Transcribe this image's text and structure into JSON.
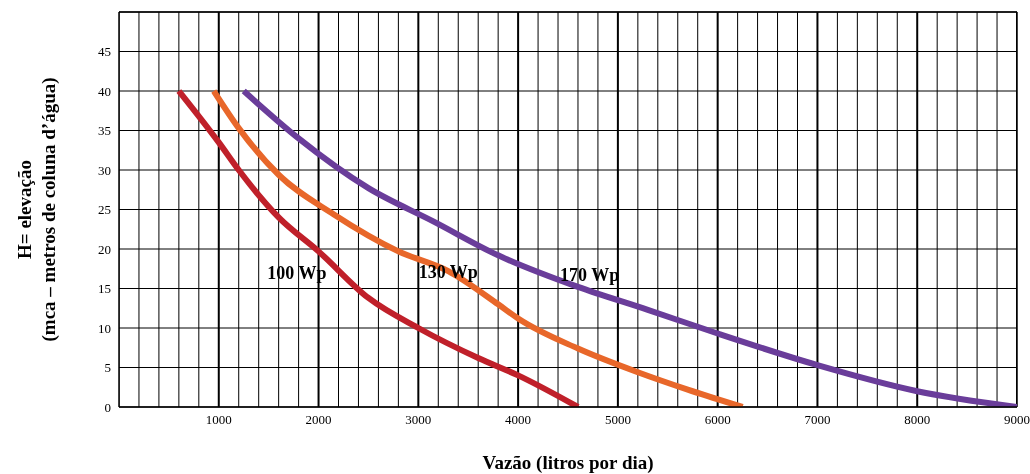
{
  "chart_data": {
    "type": "line",
    "xlabel": "Vazão (litros por dia)",
    "ylabel": "H= elevação\n(mca – metros de coluna d’água)",
    "xlim": [
      0,
      9000
    ],
    "ylim": [
      0,
      50
    ],
    "xticks": [
      {
        "value": 0,
        "label": null
      },
      {
        "value": 200,
        "label": null
      },
      {
        "value": 400,
        "label": null
      },
      {
        "value": 600,
        "label": null
      },
      {
        "value": 800,
        "label": null
      },
      1000,
      {
        "value": 1200,
        "label": null
      },
      {
        "value": 1400,
        "label": null
      },
      {
        "value": 1600,
        "label": null
      },
      {
        "value": 1800,
        "label": null
      },
      2000,
      {
        "value": 2200,
        "label": null
      },
      {
        "value": 2400,
        "label": null
      },
      {
        "value": 2600,
        "label": null
      },
      {
        "value": 2800,
        "label": null
      },
      3000,
      {
        "value": 3200,
        "label": null
      },
      {
        "value": 3400,
        "label": null
      },
      {
        "value": 3600,
        "label": null
      },
      {
        "value": 3800,
        "label": null
      },
      4000,
      {
        "value": 4200,
        "label": null
      },
      {
        "value": 4400,
        "label": null
      },
      {
        "value": 4600,
        "label": null
      },
      {
        "value": 4800,
        "label": null
      },
      5000,
      {
        "value": 5200,
        "label": null
      },
      {
        "value": 5400,
        "label": null
      },
      {
        "value": 5600,
        "label": null
      },
      {
        "value": 5800,
        "label": null
      },
      6000,
      {
        "value": 6200,
        "label": null
      },
      {
        "value": 6400,
        "label": null
      },
      {
        "value": 6600,
        "label": null
      },
      {
        "value": 6800,
        "label": null
      },
      7000,
      {
        "value": 7200,
        "label": null
      },
      {
        "value": 7400,
        "label": null
      },
      {
        "value": 7600,
        "label": null
      },
      {
        "value": 7800,
        "label": null
      },
      8000,
      {
        "value": 8200,
        "label": null
      },
      {
        "value": 8400,
        "label": null
      },
      {
        "value": 8600,
        "label": null
      },
      {
        "value": 8800,
        "label": null
      },
      9000
    ],
    "yticks": [
      0,
      5,
      10,
      15,
      20,
      25,
      30,
      35,
      40,
      45
    ],
    "grid": true,
    "legend": false,
    "marker": "none",
    "line_style": "solid",
    "series": [
      {
        "color": "#c0202a",
        "x": [
          600,
          1000,
          1200,
          1600,
          2000,
          2500,
          3000,
          3600,
          4000,
          4600
        ],
        "values": [
          40,
          33.5,
          30,
          24,
          19.7,
          13.8,
          10,
          6.2,
          4,
          0
        ]
      },
      {
        "color": "#e8672a",
        "x": [
          950,
          1200,
          1600,
          2150,
          2800,
          3300,
          3800,
          4000,
          4600,
          5200,
          5700,
          6250
        ],
        "values": [
          40,
          35.3,
          29.4,
          24.4,
          19.7,
          17.2,
          13,
          11.2,
          7.4,
          4.4,
          2.2,
          0
        ]
      },
      {
        "color": "#6a3d9a",
        "x": [
          1250,
          1800,
          2500,
          3150,
          3800,
          4600,
          5300,
          6000,
          7000,
          8000,
          9000
        ],
        "values": [
          40,
          34,
          27.7,
          23.5,
          19.2,
          15.2,
          12.3,
          9.3,
          5.3,
          2,
          0
        ]
      }
    ],
    "annotations": [
      {
        "text": "100 Wp",
        "x": 2200,
        "y": 17
      },
      {
        "text": "130 Wp",
        "x": 3300,
        "y": 17.2
      },
      {
        "text": "170 Wp",
        "x": 4300,
        "y": 16.7
      }
    ]
  }
}
